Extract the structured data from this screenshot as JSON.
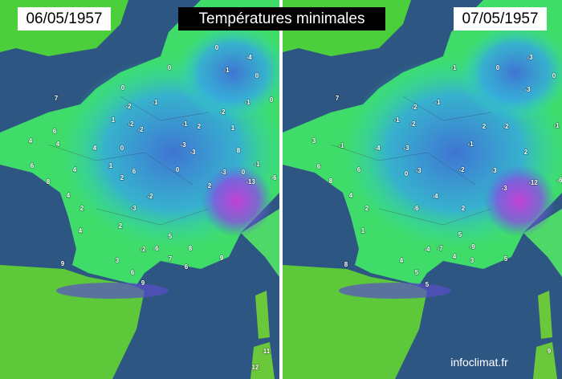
{
  "title": "Températures minimales",
  "credit": "infoclimat.fr",
  "panels": [
    {
      "date": "06/05/1957",
      "stations": [
        7,
        6,
        4,
        4,
        6,
        8,
        4,
        4,
        4,
        4,
        2,
        0,
        -2,
        -1,
        1,
        -2,
        -2,
        0,
        1,
        2,
        6,
        -2,
        -3,
        2,
        0,
        -1,
        -3,
        -3,
        0,
        2,
        -2,
        1,
        8,
        -3,
        0,
        -13,
        -1,
        -6,
        2,
        5,
        -2,
        -6,
        7,
        6,
        8,
        9,
        3,
        6,
        9,
        9,
        0,
        -4,
        0,
        -1,
        -1,
        0,
        11,
        12
      ]
    },
    {
      "date": "07/05/1957",
      "stations": [
        7,
        3,
        -1,
        -4,
        6,
        8,
        6,
        4,
        2,
        1,
        -2,
        -1,
        -2,
        -1,
        -3,
        0,
        -3,
        -4,
        -6,
        2,
        -2,
        -1,
        2,
        -2,
        2,
        -12,
        -6,
        -3,
        -3,
        5,
        -4,
        -7,
        4,
        3,
        -9,
        5,
        4,
        5,
        5,
        8,
        -1,
        0,
        -3,
        -3,
        0,
        -1,
        9
      ]
    }
  ]
}
